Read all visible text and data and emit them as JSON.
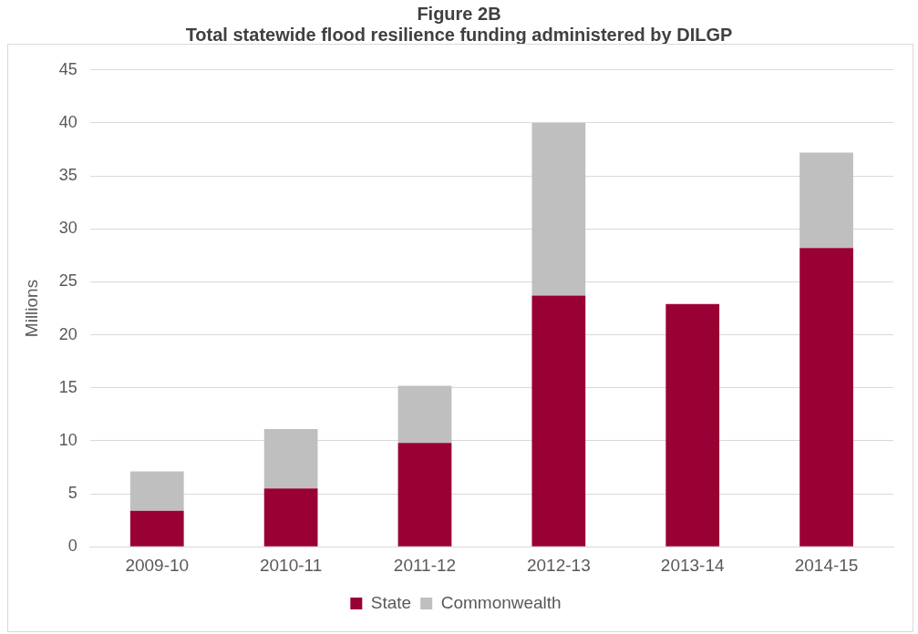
{
  "chart_data": {
    "type": "bar",
    "title": "Figure 2B",
    "subtitle": "Total statewide flood resilience funding administered by DILGP",
    "ylabel": "Millions",
    "categories": [
      "2009-10",
      "2010-11",
      "2011-12",
      "2012-13",
      "2013-14",
      "2014-15"
    ],
    "series": [
      {
        "name": "State",
        "color": "#990033",
        "values": [
          3.4,
          5.5,
          9.8,
          23.7,
          22.9,
          28.2
        ]
      },
      {
        "name": "Commonwealth",
        "color": "#bfbfbf",
        "values": [
          3.7,
          5.6,
          5.4,
          16.3,
          0,
          9.0
        ]
      }
    ],
    "stacked": true,
    "ylim": [
      0,
      45
    ],
    "yticks": [
      0,
      5,
      10,
      15,
      20,
      25,
      30,
      35,
      40,
      45
    ],
    "grid": "y",
    "legend": "bottom"
  }
}
